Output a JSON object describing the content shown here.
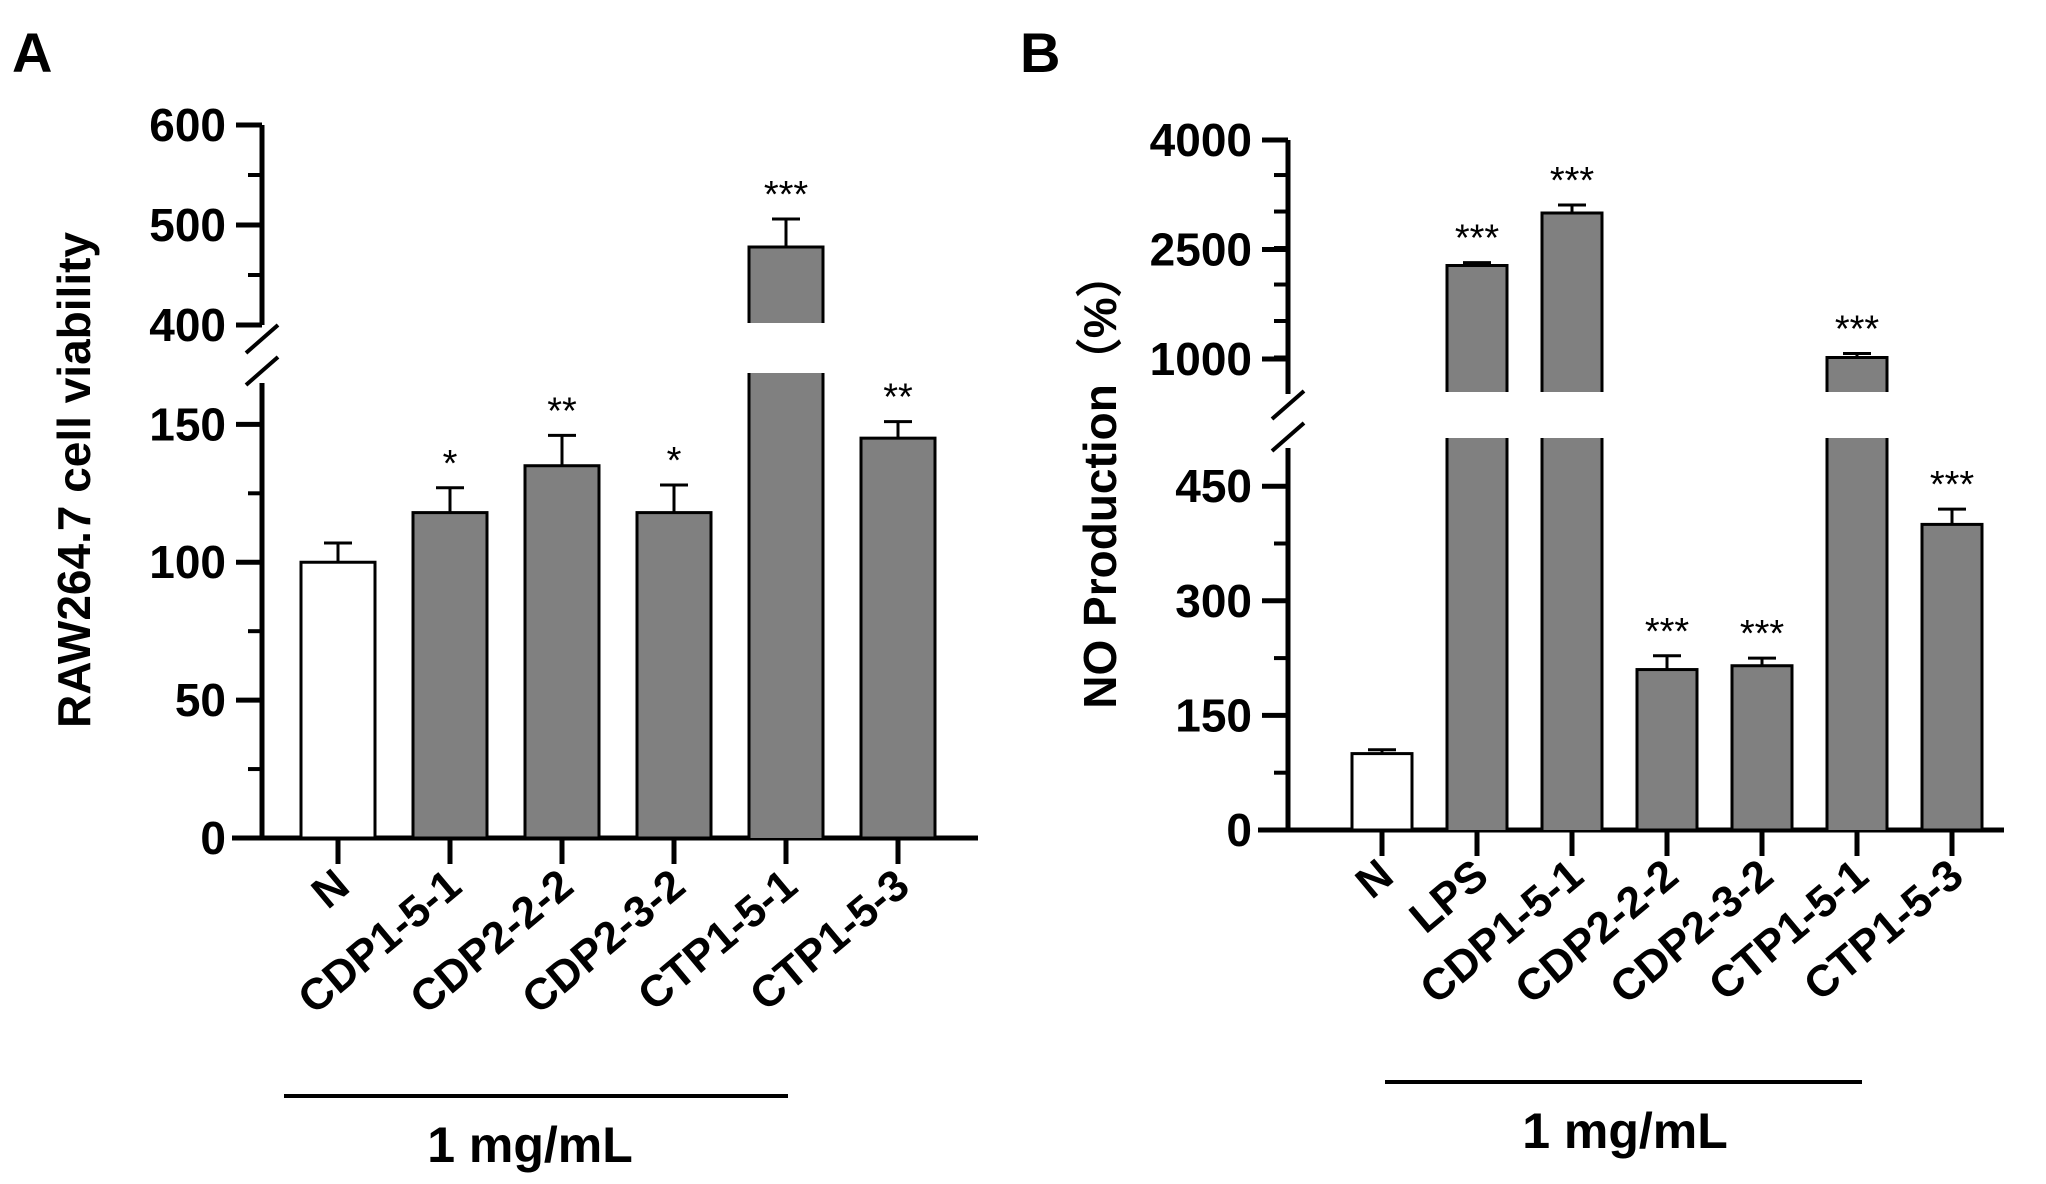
{
  "panels": {
    "a": {
      "letter": "A"
    },
    "b": {
      "letter": "B"
    }
  },
  "chart_data": [
    {
      "type": "bar",
      "panel": "A",
      "title": "",
      "xlabel": "",
      "ylabel": "RAW264.7 cell viability",
      "categories": [
        "N",
        "CDP1-5-1",
        "CDP2-2-2",
        "CDP2-3-2",
        "CTP1-5-1",
        "CTP1-5-3"
      ],
      "series": [
        {
          "name": "cell viability",
          "values": [
            100,
            118,
            135,
            118,
            478,
            145
          ],
          "errors": [
            7,
            9,
            11,
            10,
            28,
            6
          ],
          "colors": [
            "#ffffff",
            "#808080",
            "#808080",
            "#808080",
            "#808080",
            "#808080"
          ]
        }
      ],
      "significance": [
        "",
        "*",
        "**",
        "*",
        "***",
        "**"
      ],
      "axis_break": true,
      "lower_segment": {
        "ylim": [
          0,
          165
        ],
        "ticks": [
          0,
          50,
          100,
          150
        ]
      },
      "upper_segment": {
        "ylim": [
          400,
          600
        ],
        "ticks": [
          400,
          500,
          600
        ]
      },
      "group_label": "1 mg/mL",
      "group_members": [
        "CDP1-5-1",
        "CDP2-2-2",
        "CDP2-3-2",
        "CTP1-5-1",
        "CTP1-5-3"
      ]
    },
    {
      "type": "bar",
      "panel": "B",
      "title": "",
      "xlabel": "",
      "ylabel": "NO Production（%）",
      "categories": [
        "N",
        "LPS",
        "CDP1-5-1",
        "CDP2-2-2",
        "CDP2-3-2",
        "CTP1-5-1",
        "CTP1-5-3"
      ],
      "series": [
        {
          "name": "NO production",
          "values": [
            100,
            2280,
            3000,
            210,
            215,
            1020,
            400
          ],
          "errors": [
            5,
            40,
            110,
            18,
            10,
            55,
            20
          ],
          "colors": [
            "#ffffff",
            "#808080",
            "#808080",
            "#808080",
            "#808080",
            "#808080",
            "#808080"
          ]
        }
      ],
      "significance": [
        "",
        "***",
        "***",
        "***",
        "***",
        "***",
        "***"
      ],
      "axis_break": true,
      "lower_segment": {
        "ylim": [
          0,
          500
        ],
        "ticks": [
          0,
          150,
          300,
          450
        ]
      },
      "upper_segment": {
        "ylim": [
          520,
          4000
        ],
        "ticks": [
          1000,
          2500,
          4000
        ]
      },
      "group_label": "1 mg/mL",
      "group_members": [
        "LPS",
        "CDP1-5-1",
        "CDP2-2-2",
        "CDP2-3-2",
        "CTP1-5-1",
        "CTP1-5-3"
      ]
    }
  ]
}
